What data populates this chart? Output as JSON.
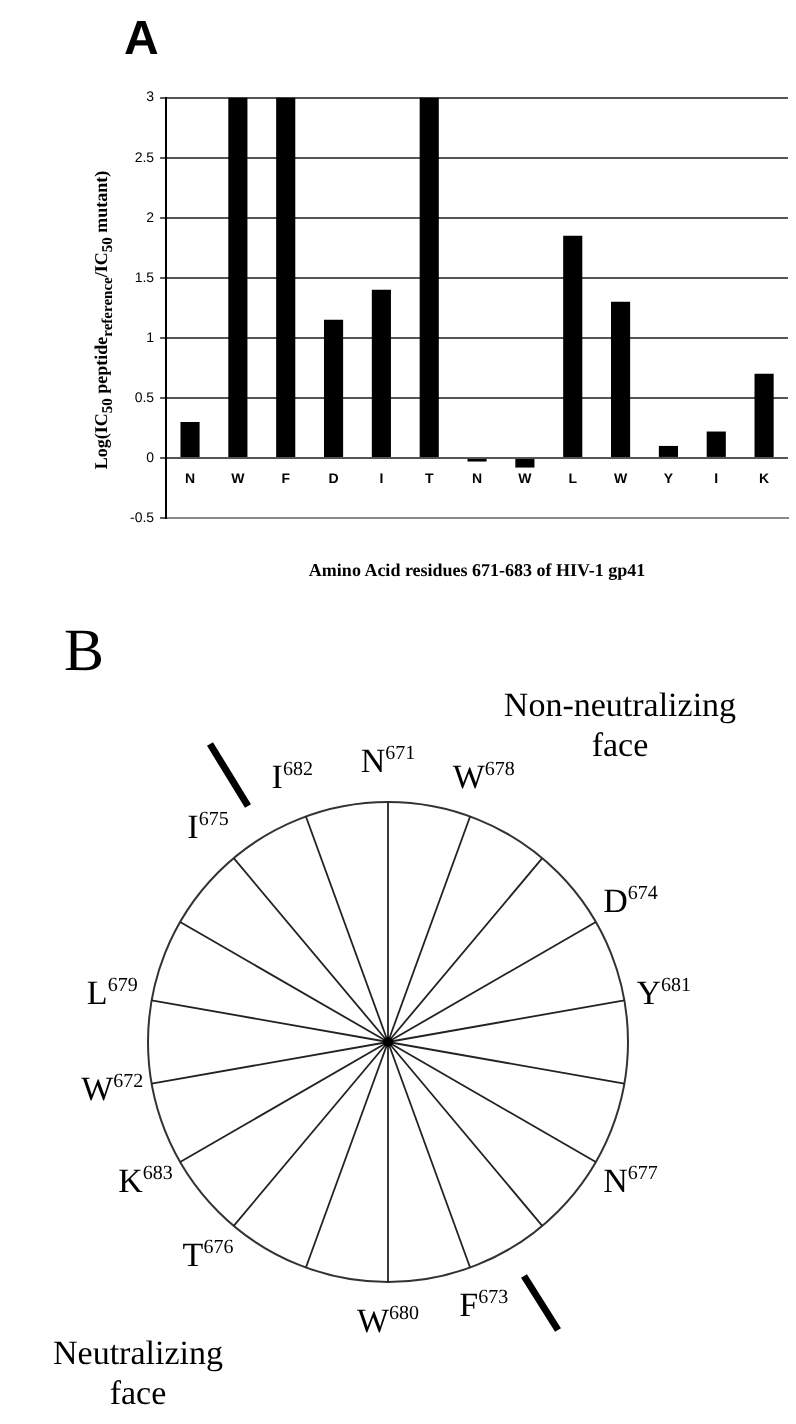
{
  "chart_data": [
    {
      "type": "bar",
      "title": "A",
      "xlabel": "Amino Acid residues 671-683 of HIV-1 gp41",
      "ylabel": "Log(IC$_{50}$ peptide$_{reference}$/IC$_{50}$ mutant)",
      "categories": [
        "N",
        "W",
        "F",
        "D",
        "I",
        "T",
        "N",
        "W",
        "L",
        "W",
        "Y",
        "I",
        "K"
      ],
      "values": [
        0.3,
        3,
        3,
        1.15,
        1.4,
        3,
        -0.03,
        -0.08,
        1.85,
        1.3,
        0.1,
        0.22,
        0.7
      ],
      "color": "#000000",
      "ylim": [
        -0.5,
        3
      ],
      "yticks": [
        -0.5,
        0,
        0.5,
        1,
        1.5,
        2,
        2.5,
        3
      ],
      "grid": "y"
    },
    {
      "type": "other",
      "title": "B",
      "annotations": [
        "N$^{671}$",
        "W$^{672}$",
        "F$^{673}$",
        "D$^{674}$",
        "I$^{675}$",
        "T$^{676}$",
        "N$^{677}$",
        "W$^{678}$",
        "L$^{679}$",
        "W$^{680}$",
        "Y$^{681}$",
        "I$^{682}$",
        "K$^{683}$",
        "Non-neutralizing face",
        "Neutralizing face"
      ]
    }
  ]
}
